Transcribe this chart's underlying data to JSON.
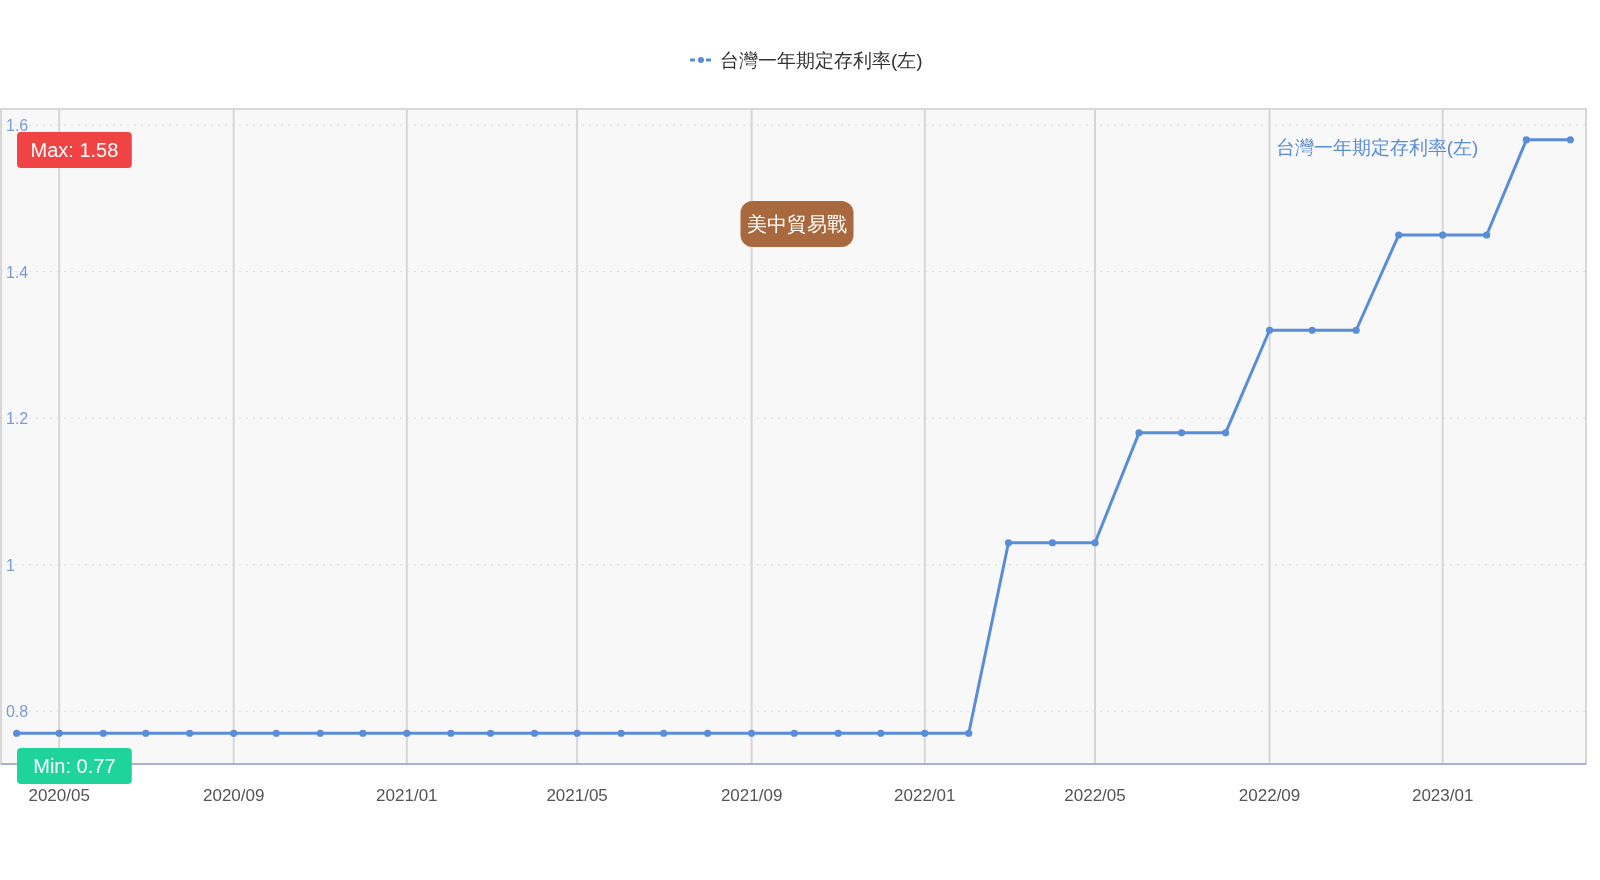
{
  "chart_data": {
    "type": "line",
    "x": [
      "2020-04",
      "2020-05",
      "2020-06",
      "2020-07",
      "2020-08",
      "2020-09",
      "2020-10",
      "2020-11",
      "2020-12",
      "2021-01",
      "2021-02",
      "2021-03",
      "2021-04",
      "2021-05",
      "2021-06",
      "2021-07",
      "2021-08",
      "2021-09",
      "2021-10",
      "2021-11",
      "2021-12",
      "2022-01",
      "2022-02",
      "2022-03",
      "2022-04",
      "2022-05",
      "2022-06",
      "2022-07",
      "2022-08",
      "2022-09",
      "2022-10",
      "2022-11",
      "2022-12",
      "2023-01",
      "2023-02",
      "2023-03",
      "2023-04"
    ],
    "series": [
      {
        "name": "台灣一年期定存利率(左)",
        "color": "#5a8dd8",
        "values": [
          0.77,
          0.77,
          0.77,
          0.77,
          0.77,
          0.77,
          0.77,
          0.77,
          0.77,
          0.77,
          0.77,
          0.77,
          0.77,
          0.77,
          0.77,
          0.77,
          0.77,
          0.77,
          0.77,
          0.77,
          0.77,
          0.77,
          0.77,
          1.03,
          1.03,
          1.03,
          1.18,
          1.18,
          1.18,
          1.32,
          1.32,
          1.32,
          1.45,
          1.45,
          1.45,
          1.58,
          1.58
        ]
      }
    ],
    "xlim": [
      "2020-03-21",
      "2023-04-12"
    ],
    "xticks": [
      {
        "value": "2020-05",
        "label": "2020/05"
      },
      {
        "value": "2020-09",
        "label": "2020/09"
      },
      {
        "value": "2021-01",
        "label": "2021/01"
      },
      {
        "value": "2021-05",
        "label": "2021/05"
      },
      {
        "value": "2021-09",
        "label": "2021/09"
      },
      {
        "value": "2022-01",
        "label": "2022/01"
      },
      {
        "value": "2022-05",
        "label": "2022/05"
      },
      {
        "value": "2022-09",
        "label": "2022/09"
      },
      {
        "value": "2023-01",
        "label": "2023/01"
      }
    ],
    "ylim": [
      0.728,
      1.622
    ],
    "yticks": [
      0.8,
      1,
      1.2,
      1.4,
      1.6
    ],
    "annotations": [
      "Max: 1.58",
      "Min: 0.77",
      "美中貿易戰"
    ],
    "grid": true,
    "legend": "top",
    "marker": "circle",
    "line_style": "solid"
  }
}
